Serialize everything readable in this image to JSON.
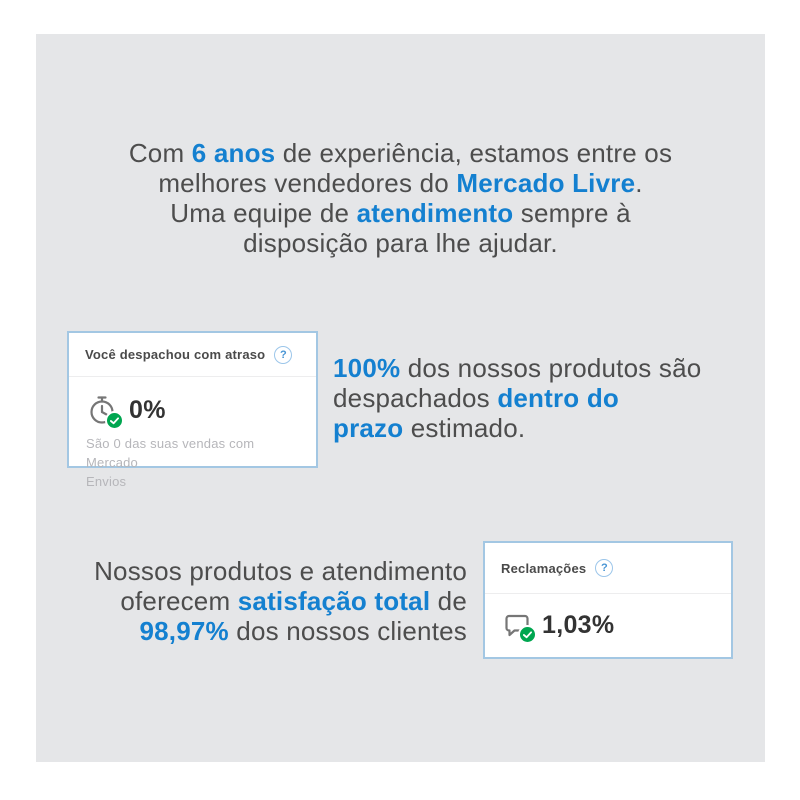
{
  "colors": {
    "accent_blue": "#1480d0",
    "text_dark": "#4d4d4d",
    "panel_bg": "#e5e6e8",
    "card_border": "#a3c7e3",
    "check_green": "#00a650",
    "muted_gray": "#b6b6ba"
  },
  "intro": {
    "lines": [
      [
        {
          "t": "Com ",
          "hl": false
        },
        {
          "t": "6 anos",
          "hl": true
        },
        {
          "t": " de experiência, estamos entre os",
          "hl": false
        }
      ],
      [
        {
          "t": "melhores vendedores do ",
          "hl": false
        },
        {
          "t": "Mercado Livre",
          "hl": true
        },
        {
          "t": ".",
          "hl": false
        }
      ],
      [
        {
          "t": "Uma equipe de ",
          "hl": false
        },
        {
          "t": "atendimento",
          "hl": true
        },
        {
          "t": " sempre à",
          "hl": false
        }
      ],
      [
        {
          "t": "disposição para lhe ajudar.",
          "hl": false
        }
      ]
    ]
  },
  "shipping_text": {
    "lines": [
      [
        {
          "t": "100%",
          "hl": true
        },
        {
          "t": " dos nossos produtos são",
          "hl": false
        }
      ],
      [
        {
          "t": "despachados ",
          "hl": false
        },
        {
          "t": "dentro do",
          "hl": true
        }
      ],
      [
        {
          "t": "prazo",
          "hl": true
        },
        {
          "t": " estimado.",
          "hl": false
        }
      ]
    ]
  },
  "satisfaction_text": {
    "lines": [
      [
        {
          "t": "Nossos produtos e atendimento",
          "hl": false
        }
      ],
      [
        {
          "t": "oferecem ",
          "hl": false
        },
        {
          "t": "satisfação total",
          "hl": true
        },
        {
          "t": " de",
          "hl": false
        }
      ],
      [
        {
          "t": "98,97%",
          "hl": true
        },
        {
          "t": " dos nossos clientes",
          "hl": false
        }
      ]
    ]
  },
  "card_shipping": {
    "title": "Você despachou com atraso",
    "help_glyph": "?",
    "stat_icon": "stopwatch-check-icon",
    "value": "0%",
    "subtitle_lines": [
      "São 0 das suas vendas com Mercado",
      "Envios"
    ]
  },
  "card_complaints": {
    "title": "Reclamações",
    "help_glyph": "?",
    "stat_icon": "chat-bubble-check-icon",
    "value": "1,03%"
  }
}
